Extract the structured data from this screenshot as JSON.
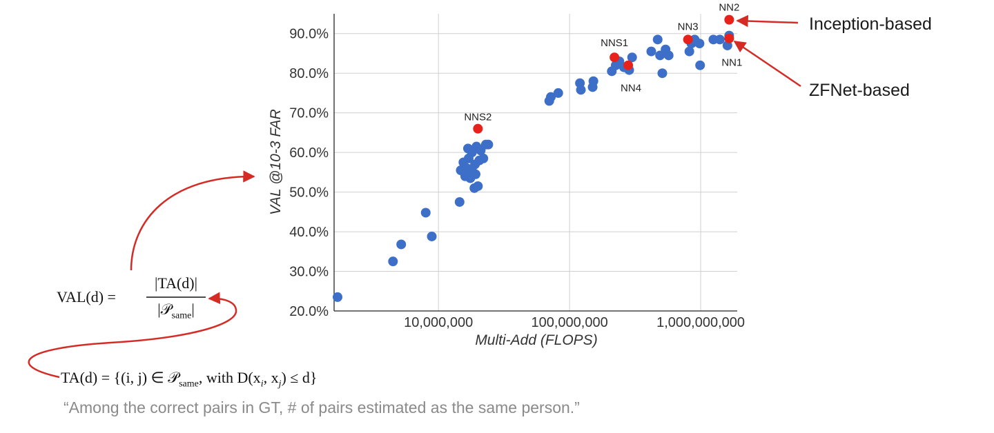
{
  "chart_data": {
    "type": "scatter",
    "xlabel": "Multi-Add (FLOPS)",
    "ylabel": "VAL @10-3 FAR",
    "x_scale": "log",
    "xlim": [
      1600000,
      1900000000
    ],
    "ylim": [
      20,
      95
    ],
    "x_ticks": [
      10000000,
      100000000,
      1000000000
    ],
    "x_tick_labels": [
      "10,000,000",
      "100,000,000",
      "1,000,000,000"
    ],
    "y_ticks": [
      20,
      30,
      40,
      50,
      60,
      70,
      80,
      90
    ],
    "y_tick_labels": [
      "20.0%",
      "30.0%",
      "40.0%",
      "50.0%",
      "60.0%",
      "70.0%",
      "80.0%",
      "90.0%"
    ],
    "grid": true,
    "colors": {
      "blue": "#3d6fc9",
      "red": "#e8221b",
      "arrow": "#d42b25"
    },
    "series": [
      {
        "color": "blue",
        "points": [
          [
            1700000,
            23.5
          ],
          [
            4500000,
            32.5
          ],
          [
            5200000,
            36.8
          ],
          [
            8000000,
            44.8
          ],
          [
            8900000,
            38.8
          ],
          [
            14500000,
            47.5
          ],
          [
            14800000,
            55.5
          ],
          [
            15500000,
            57.5
          ],
          [
            16000000,
            54.0
          ],
          [
            16500000,
            56.0
          ],
          [
            17000000,
            58.5
          ],
          [
            17500000,
            53.5
          ],
          [
            18000000,
            60.0
          ],
          [
            18300000,
            55.0
          ],
          [
            18800000,
            51.0
          ],
          [
            19000000,
            57.0
          ],
          [
            19500000,
            61.5
          ],
          [
            20000000,
            51.5
          ],
          [
            20500000,
            58.0
          ],
          [
            21000000,
            60.5
          ],
          [
            22000000,
            58.5
          ],
          [
            23000000,
            62.0
          ],
          [
            24000000,
            62.0
          ],
          [
            16800000,
            61.0
          ],
          [
            19200000,
            54.5
          ],
          [
            70000000,
            73.0
          ],
          [
            72000000,
            74.0
          ],
          [
            82000000,
            75.0
          ],
          [
            120000000,
            77.5
          ],
          [
            122000000,
            75.8
          ],
          [
            150000000,
            76.5
          ],
          [
            152000000,
            78.0
          ],
          [
            210000000,
            80.5
          ],
          [
            225000000,
            82.0
          ],
          [
            240000000,
            83.0
          ],
          [
            260000000,
            81.5
          ],
          [
            285000000,
            80.8
          ],
          [
            300000000,
            84.0
          ],
          [
            420000000,
            85.5
          ],
          [
            470000000,
            88.5
          ],
          [
            490000000,
            84.5
          ],
          [
            510000000,
            80.0
          ],
          [
            540000000,
            86.0
          ],
          [
            570000000,
            84.5
          ],
          [
            820000000,
            85.5
          ],
          [
            850000000,
            87.5
          ],
          [
            900000000,
            88.5
          ],
          [
            980000000,
            87.5
          ],
          [
            990000000,
            82.0
          ],
          [
            1250000000,
            88.5
          ],
          [
            1400000000,
            88.5
          ],
          [
            1600000000,
            87.0
          ],
          [
            1650000000,
            89.5
          ]
        ]
      },
      {
        "color": "red",
        "points": [
          {
            "x": 20000000,
            "y": 66.0,
            "label": "NNS2"
          },
          {
            "x": 220000000,
            "y": 84.0,
            "label": "NNS1"
          },
          {
            "x": 280000000,
            "y": 82.0,
            "label": "NN4"
          },
          {
            "x": 800000000,
            "y": 88.5,
            "label": "NN3"
          },
          {
            "x": 1650000000,
            "y": 93.5,
            "label": "NN2"
          },
          {
            "x": 1650000000,
            "y": 88.8,
            "label": "NN1"
          }
        ]
      }
    ],
    "annotations": [
      {
        "text": "Inception-based",
        "points_to": "NN2"
      },
      {
        "text": "ZFNet-based",
        "points_to": "NN1"
      }
    ]
  },
  "formulas": {
    "val_lhs": "VAL(d) =",
    "val_num": "|TA(d)|",
    "val_den": "|𝒫",
    "val_den_sub": "same",
    "val_den_end": "|",
    "ta_prefix": "TA(d) = {(i, j) ∈ 𝒫",
    "ta_sub": "same",
    "ta_suffix": ", with D(x",
    "ta_sub_i": "i",
    "ta_mid": ", x",
    "ta_sub_j": "j",
    "ta_end": ") ≤ d}"
  },
  "caption": "“Among the correct pairs in GT, # of pairs estimated as the same person.”"
}
